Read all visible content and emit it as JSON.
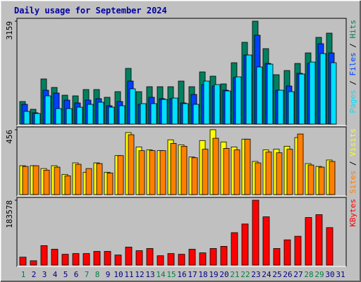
{
  "title": "Daily usage for September 2024",
  "legend_separator": " / ",
  "chart_data": [
    {
      "type": "bar",
      "ylim": [
        0,
        3159
      ],
      "yticks": [
        3159
      ],
      "series": [
        {
          "name": "Hits",
          "color": "#008060",
          "values": [
            692,
            454,
            1385,
            1125,
            887,
            866,
            1060,
            1060,
            822,
            995,
            1709,
            995,
            1147,
            1147,
            1147,
            1320,
            1147,
            1601,
            1471,
            1233,
            1883,
            2510,
            3159,
            2315,
            1515,
            1644,
            1861,
            2185,
            2661,
            2791,
            null
          ]
        },
        {
          "name": "Files",
          "color": "#0040ff",
          "values": [
            606,
            346,
            1039,
            952,
            736,
            649,
            736,
            779,
            563,
            692,
            1320,
            606,
            822,
            779,
            779,
            649,
            909,
            1212,
            1168,
            1039,
            1428,
            2120,
            2727,
            1861,
            1039,
            1168,
            1558,
            1861,
            2467,
            2185,
            null
          ]
        },
        {
          "name": "Pages",
          "color": "#00e0ff",
          "values": [
            390,
            325,
            866,
            476,
            476,
            519,
            606,
            671,
            519,
            563,
            1082,
            628,
            628,
            757,
            800,
            628,
            606,
            1320,
            1212,
            1017,
            1450,
            2120,
            1753,
            1839,
            1039,
            995,
            1536,
            1904,
            2164,
            1883,
            null
          ]
        }
      ]
    },
    {
      "type": "bar",
      "ylim": [
        0,
        456
      ],
      "yticks": [
        456
      ],
      "series": [
        {
          "name": "Visits",
          "color": "#ffff00",
          "values": [
            203,
            203,
            183,
            203,
            142,
            223,
            157,
            223,
            157,
            274,
            436,
            335,
            314,
            309,
            385,
            350,
            264,
            380,
            456,
            370,
            335,
            390,
            233,
            314,
            319,
            340,
            401,
            218,
            198,
            243,
            null
          ]
        },
        {
          "name": "Sites",
          "color": "#ff8000",
          "values": [
            198,
            203,
            172,
            193,
            132,
            213,
            183,
            218,
            152,
            274,
            421,
            309,
            309,
            309,
            360,
            340,
            259,
            319,
            396,
            325,
            314,
            390,
            223,
            299,
            294,
            319,
            426,
            208,
            193,
            233,
            null
          ]
        }
      ]
    },
    {
      "type": "bar",
      "ylim": [
        0,
        183578
      ],
      "yticks": [
        183578
      ],
      "categories": [
        "1",
        "2",
        "3",
        "4",
        "5",
        "6",
        "7",
        "8",
        "9",
        "10",
        "11",
        "12",
        "13",
        "14",
        "15",
        "16",
        "17",
        "18",
        "19",
        "20",
        "21",
        "22",
        "23",
        "24",
        "25",
        "26",
        "27",
        "28",
        "29",
        "30",
        "31"
      ],
      "category_colors": [
        "#008040",
        "#000080",
        "#000080",
        "#000080",
        "#000080",
        "#000080",
        "#008040",
        "#008040",
        "#000080",
        "#000080",
        "#000080",
        "#000080",
        "#000080",
        "#008040",
        "#008040",
        "#000080",
        "#000080",
        "#000080",
        "#000080",
        "#000080",
        "#008040",
        "#008040",
        "#000080",
        "#000080",
        "#000080",
        "#000080",
        "#000080",
        "#008040",
        "#008040",
        "#000080",
        "#000080"
      ],
      "series": [
        {
          "name": "KBytes",
          "color": "#ff0000",
          "values": [
            22440,
            12240,
            55080,
            44880,
            30600,
            32640,
            32640,
            38760,
            38760,
            28560,
            51000,
            40800,
            46920,
            26520,
            32640,
            30600,
            44880,
            34680,
            46920,
            53040,
            91800,
            116280,
            183578,
            136680,
            46920,
            71400,
            81600,
            134640,
            142800,
            106080,
            null
          ]
        }
      ]
    }
  ]
}
